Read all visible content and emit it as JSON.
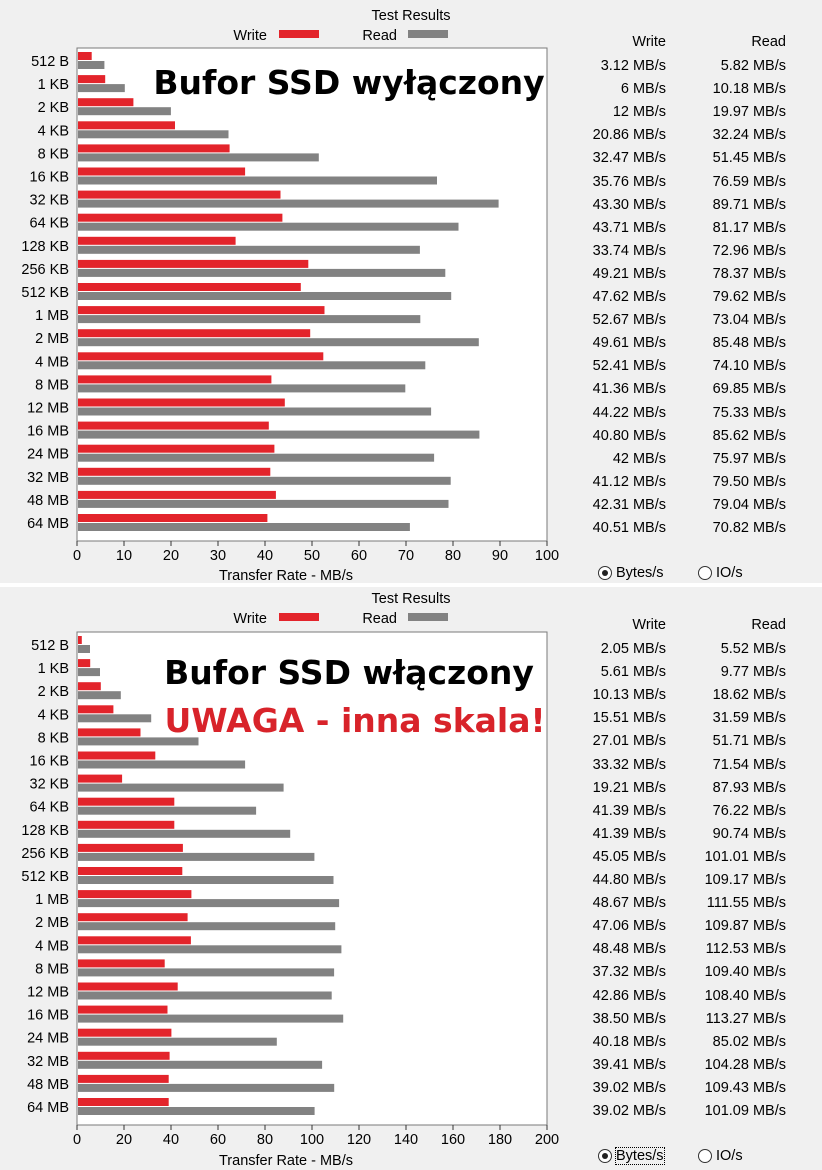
{
  "panels": [
    {
      "section_title": "Test Results",
      "legend": {
        "write": "Write",
        "read": "Read"
      },
      "overlay_lines": [
        "Bufor SSD wyłączony"
      ],
      "table_headers": {
        "write": "Write",
        "read": "Read"
      },
      "table_rows": [
        {
          "size": "512 B",
          "write": "3.12 MB/s",
          "read": "5.82 MB/s"
        },
        {
          "size": "1 KB",
          "write": "6 MB/s",
          "read": "10.18 MB/s"
        },
        {
          "size": "2 KB",
          "write": "12 MB/s",
          "read": "19.97 MB/s"
        },
        {
          "size": "4 KB",
          "write": "20.86 MB/s",
          "read": "32.24 MB/s"
        },
        {
          "size": "8 KB",
          "write": "32.47 MB/s",
          "read": "51.45 MB/s"
        },
        {
          "size": "16 KB",
          "write": "35.76 MB/s",
          "read": "76.59 MB/s"
        },
        {
          "size": "32 KB",
          "write": "43.30 MB/s",
          "read": "89.71 MB/s"
        },
        {
          "size": "64 KB",
          "write": "43.71 MB/s",
          "read": "81.17 MB/s"
        },
        {
          "size": "128 KB",
          "write": "33.74 MB/s",
          "read": "72.96 MB/s"
        },
        {
          "size": "256 KB",
          "write": "49.21 MB/s",
          "read": "78.37 MB/s"
        },
        {
          "size": "512 KB",
          "write": "47.62 MB/s",
          "read": "79.62 MB/s"
        },
        {
          "size": "1 MB",
          "write": "52.67 MB/s",
          "read": "73.04 MB/s"
        },
        {
          "size": "2 MB",
          "write": "49.61 MB/s",
          "read": "85.48 MB/s"
        },
        {
          "size": "4 MB",
          "write": "52.41 MB/s",
          "read": "74.10 MB/s"
        },
        {
          "size": "8 MB",
          "write": "41.36 MB/s",
          "read": "69.85 MB/s"
        },
        {
          "size": "12 MB",
          "write": "44.22 MB/s",
          "read": "75.33 MB/s"
        },
        {
          "size": "16 MB",
          "write": "40.80 MB/s",
          "read": "85.62 MB/s"
        },
        {
          "size": "24 MB",
          "write": "42 MB/s",
          "read": "75.97 MB/s"
        },
        {
          "size": "32 MB",
          "write": "41.12 MB/s",
          "read": "79.50 MB/s"
        },
        {
          "size": "48 MB",
          "write": "42.31 MB/s",
          "read": "79.04 MB/s"
        },
        {
          "size": "64 MB",
          "write": "40.51 MB/s",
          "read": "70.82 MB/s"
        }
      ],
      "radio_bytes": "Bytes/s",
      "radio_io": "IO/s"
    },
    {
      "section_title": "Test Results",
      "legend": {
        "write": "Write",
        "read": "Read"
      },
      "overlay_lines": [
        "Bufor SSD włączony",
        "UWAGA - inna skala!"
      ],
      "table_headers": {
        "write": "Write",
        "read": "Read"
      },
      "table_rows": [
        {
          "size": "512 B",
          "write": "2.05 MB/s",
          "read": "5.52 MB/s"
        },
        {
          "size": "1 KB",
          "write": "5.61 MB/s",
          "read": "9.77 MB/s"
        },
        {
          "size": "2 KB",
          "write": "10.13 MB/s",
          "read": "18.62 MB/s"
        },
        {
          "size": "4 KB",
          "write": "15.51 MB/s",
          "read": "31.59 MB/s"
        },
        {
          "size": "8 KB",
          "write": "27.01 MB/s",
          "read": "51.71 MB/s"
        },
        {
          "size": "16 KB",
          "write": "33.32 MB/s",
          "read": "71.54 MB/s"
        },
        {
          "size": "32 KB",
          "write": "19.21 MB/s",
          "read": "87.93 MB/s"
        },
        {
          "size": "64 KB",
          "write": "41.39 MB/s",
          "read": "76.22 MB/s"
        },
        {
          "size": "128 KB",
          "write": "41.39 MB/s",
          "read": "90.74 MB/s"
        },
        {
          "size": "256 KB",
          "write": "45.05 MB/s",
          "read": "101.01 MB/s"
        },
        {
          "size": "512 KB",
          "write": "44.80 MB/s",
          "read": "109.17 MB/s"
        },
        {
          "size": "1 MB",
          "write": "48.67 MB/s",
          "read": "111.55 MB/s"
        },
        {
          "size": "2 MB",
          "write": "47.06 MB/s",
          "read": "109.87 MB/s"
        },
        {
          "size": "4 MB",
          "write": "48.48 MB/s",
          "read": "112.53 MB/s"
        },
        {
          "size": "8 MB",
          "write": "37.32 MB/s",
          "read": "109.40 MB/s"
        },
        {
          "size": "12 MB",
          "write": "42.86 MB/s",
          "read": "108.40 MB/s"
        },
        {
          "size": "16 MB",
          "write": "38.50 MB/s",
          "read": "113.27 MB/s"
        },
        {
          "size": "24 MB",
          "write": "40.18 MB/s",
          "read": "85.02 MB/s"
        },
        {
          "size": "32 MB",
          "write": "39.41 MB/s",
          "read": "104.28 MB/s"
        },
        {
          "size": "48 MB",
          "write": "39.02 MB/s",
          "read": "109.43 MB/s"
        },
        {
          "size": "64 MB",
          "write": "39.02 MB/s",
          "read": "101.09 MB/s"
        }
      ],
      "radio_bytes": "Bytes/s",
      "radio_io": "IO/s"
    }
  ],
  "colors": {
    "write": "#e3242b",
    "read": "#828282",
    "overlay_red": "#d8232a"
  },
  "chart_data": [
    {
      "type": "bar",
      "orientation": "horizontal",
      "categories": [
        "512 B",
        "1 KB",
        "2 KB",
        "4 KB",
        "8 KB",
        "16 KB",
        "32 KB",
        "64 KB",
        "128 KB",
        "256 KB",
        "512 KB",
        "1 MB",
        "2 MB",
        "4 MB",
        "8 MB",
        "12 MB",
        "16 MB",
        "24 MB",
        "32 MB",
        "48 MB",
        "64 MB"
      ],
      "series": [
        {
          "name": "Write",
          "values": [
            3.12,
            6,
            12,
            20.86,
            32.47,
            35.76,
            43.3,
            43.71,
            33.74,
            49.21,
            47.62,
            52.67,
            49.61,
            52.41,
            41.36,
            44.22,
            40.8,
            42,
            41.12,
            42.31,
            40.51
          ]
        },
        {
          "name": "Read",
          "values": [
            5.82,
            10.18,
            19.97,
            32.24,
            51.45,
            76.59,
            89.71,
            81.17,
            72.96,
            78.37,
            79.62,
            73.04,
            85.48,
            74.1,
            69.85,
            75.33,
            85.62,
            75.97,
            79.5,
            79.04,
            70.82
          ]
        }
      ],
      "xlabel": "Transfer Rate - MB/s",
      "xlim": [
        0,
        100
      ],
      "xticks": [
        0,
        10,
        20,
        30,
        40,
        50,
        60,
        70,
        80,
        90,
        100
      ],
      "grid": false,
      "legend": "top"
    },
    {
      "type": "bar",
      "orientation": "horizontal",
      "categories": [
        "512 B",
        "1 KB",
        "2 KB",
        "4 KB",
        "8 KB",
        "16 KB",
        "32 KB",
        "64 KB",
        "128 KB",
        "256 KB",
        "512 KB",
        "1 MB",
        "2 MB",
        "4 MB",
        "8 MB",
        "12 MB",
        "16 MB",
        "24 MB",
        "32 MB",
        "48 MB",
        "64 MB"
      ],
      "series": [
        {
          "name": "Write",
          "values": [
            2.05,
            5.61,
            10.13,
            15.51,
            27.01,
            33.32,
            19.21,
            41.39,
            41.39,
            45.05,
            44.8,
            48.67,
            47.06,
            48.48,
            37.32,
            42.86,
            38.5,
            40.18,
            39.41,
            39.02,
            39.02
          ]
        },
        {
          "name": "Read",
          "values": [
            5.52,
            9.77,
            18.62,
            31.59,
            51.71,
            71.54,
            87.93,
            76.22,
            90.74,
            101.01,
            109.17,
            111.55,
            109.87,
            112.53,
            109.4,
            108.4,
            113.27,
            85.02,
            104.28,
            109.43,
            101.09
          ]
        }
      ],
      "xlabel": "Transfer Rate - MB/s",
      "xlim": [
        0,
        200
      ],
      "xticks": [
        0,
        20,
        40,
        60,
        80,
        100,
        120,
        140,
        160,
        180,
        200
      ],
      "grid": false,
      "legend": "top"
    }
  ]
}
